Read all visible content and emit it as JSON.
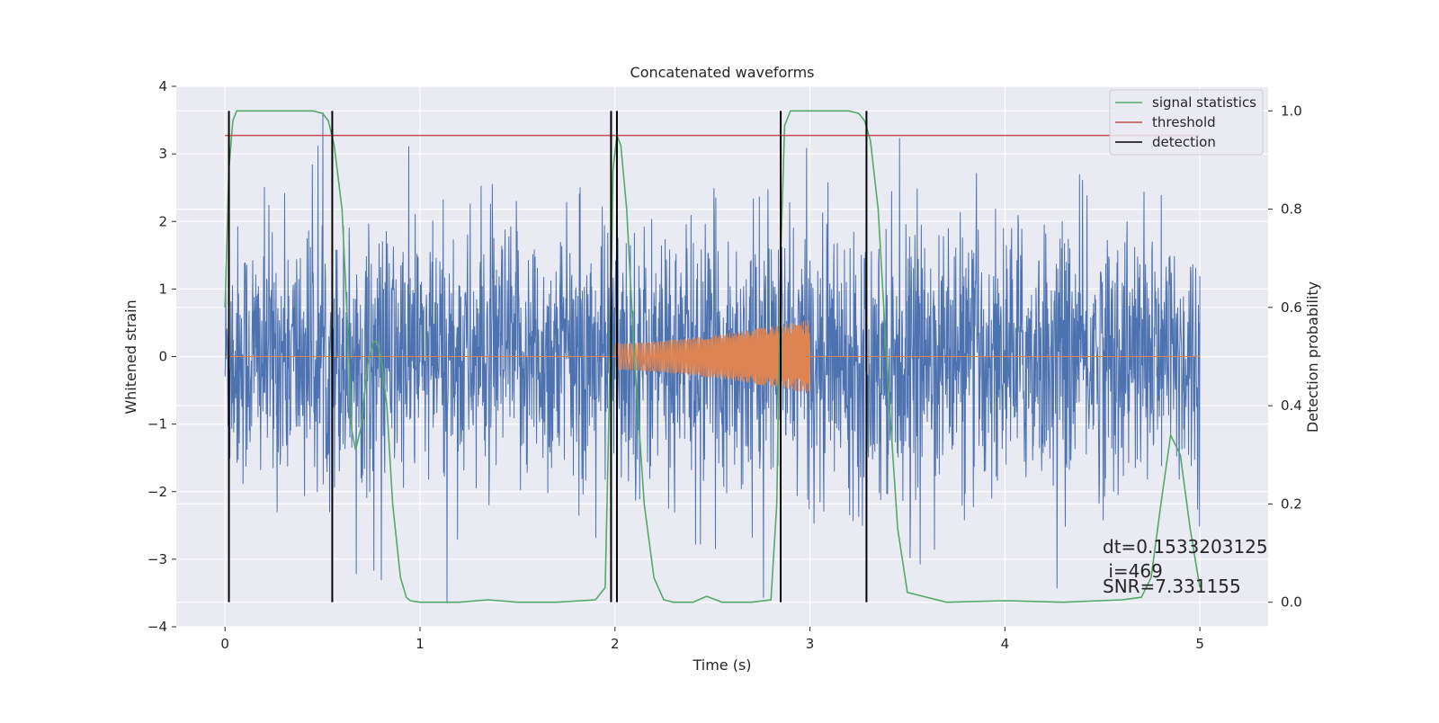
{
  "chart_data": {
    "type": "line",
    "title": "Concatenated waveforms",
    "xlabel": "Time (s)",
    "ylabel": "Whitened strain",
    "y2label": "Detection probability",
    "xlim": [
      -0.25,
      5.35
    ],
    "ylim": [
      -4,
      4
    ],
    "y2lim": [
      -0.05,
      1.05
    ],
    "xticks": [
      0,
      1,
      2,
      3,
      4,
      5
    ],
    "yticks": [
      -4,
      -3,
      -2,
      -1,
      0,
      1,
      2,
      3,
      4
    ],
    "y2ticks": [
      0.0,
      0.2,
      0.4,
      0.6,
      0.8,
      1.0
    ],
    "grid": true,
    "legend_position": "top-right",
    "colors": {
      "strain": "#4c72b0",
      "template": "#dd8452",
      "statistics": "#55a868",
      "threshold": "#c44e52",
      "detection": "#000000",
      "background": "#eaeaf2"
    },
    "series": [
      {
        "name": "signal statistics",
        "axis": "right",
        "x": [
          0,
          0.02,
          0.04,
          0.06,
          0.08,
          0.15,
          0.3,
          0.45,
          0.5,
          0.53,
          0.56,
          0.6,
          0.63,
          0.65,
          0.67,
          0.7,
          0.73,
          0.76,
          0.78,
          0.8,
          0.83,
          0.86,
          0.9,
          0.93,
          0.95,
          1.0,
          1.2,
          1.35,
          1.5,
          1.7,
          1.9,
          1.95,
          1.97,
          1.99,
          2.01,
          2.03,
          2.06,
          2.1,
          2.15,
          2.2,
          2.25,
          2.3,
          2.4,
          2.47,
          2.55,
          2.7,
          2.8,
          2.83,
          2.85,
          2.87,
          2.9,
          2.95,
          3.0,
          3.2,
          3.25,
          3.28,
          3.31,
          3.35,
          3.4,
          3.45,
          3.5,
          3.7,
          4.0,
          4.3,
          4.6,
          4.7,
          4.75,
          4.8,
          4.85,
          4.9,
          4.95,
          5.0
        ],
        "y": [
          0.6,
          0.88,
          0.98,
          1.0,
          1.0,
          1.0,
          1.0,
          1.0,
          0.995,
          0.98,
          0.93,
          0.8,
          0.55,
          0.35,
          0.31,
          0.36,
          0.48,
          0.53,
          0.53,
          0.5,
          0.4,
          0.2,
          0.05,
          0.01,
          0.003,
          0.0,
          0.0,
          0.005,
          0.0,
          0.0,
          0.005,
          0.03,
          0.4,
          0.88,
          0.95,
          0.93,
          0.8,
          0.5,
          0.2,
          0.05,
          0.005,
          0.0,
          0.0,
          0.012,
          0.0,
          0.0,
          0.005,
          0.2,
          0.7,
          0.97,
          1.0,
          1.0,
          1.0,
          1.0,
          0.995,
          0.98,
          0.94,
          0.8,
          0.45,
          0.15,
          0.02,
          0.0,
          0.003,
          0.0,
          0.005,
          0.01,
          0.05,
          0.2,
          0.34,
          0.3,
          0.15,
          0.03
        ]
      },
      {
        "name": "threshold",
        "axis": "right",
        "x": [
          0,
          5
        ],
        "y": [
          0.95,
          0.95
        ]
      },
      {
        "name": "detection",
        "axis": "right",
        "x": [
          0.02,
          0.55,
          1.98,
          2.01,
          2.85,
          3.29
        ]
      },
      {
        "name": "",
        "axis": "left",
        "role": "template",
        "x": [
          2.0,
          3.0
        ],
        "amplitude": [
          0.2,
          0.55
        ]
      },
      {
        "name": "",
        "axis": "left",
        "role": "whitened-noise",
        "x": [
          0,
          5
        ]
      }
    ],
    "annotations": [
      "dt=0.1533203125",
      " i=469",
      "SNR=7.331155"
    ]
  }
}
